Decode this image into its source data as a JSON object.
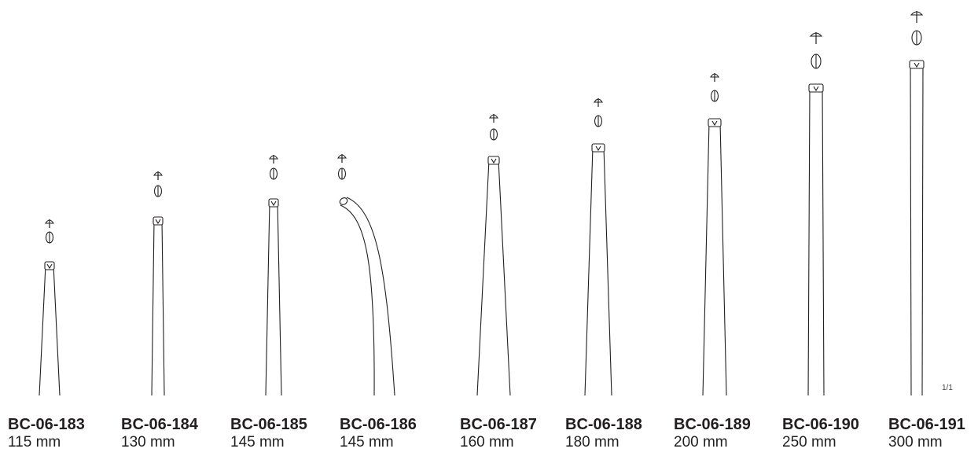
{
  "scale_note": "1/1",
  "items": [
    {
      "code": "BC-06-183",
      "length": "115 mm",
      "tip": "straight"
    },
    {
      "code": "BC-06-184",
      "length": "130 mm",
      "tip": "straight"
    },
    {
      "code": "BC-06-185",
      "length": "145 mm",
      "tip": "straight"
    },
    {
      "code": "BC-06-186",
      "length": "145 mm",
      "tip": "curved"
    },
    {
      "code": "BC-06-187",
      "length": "160 mm",
      "tip": "straight"
    },
    {
      "code": "BC-06-188",
      "length": "180 mm",
      "tip": "straight"
    },
    {
      "code": "BC-06-189",
      "length": "200 mm",
      "tip": "straight"
    },
    {
      "code": "BC-06-190",
      "length": "250 mm",
      "tip": "straight"
    },
    {
      "code": "BC-06-191",
      "length": "300 mm",
      "tip": "straight"
    }
  ]
}
